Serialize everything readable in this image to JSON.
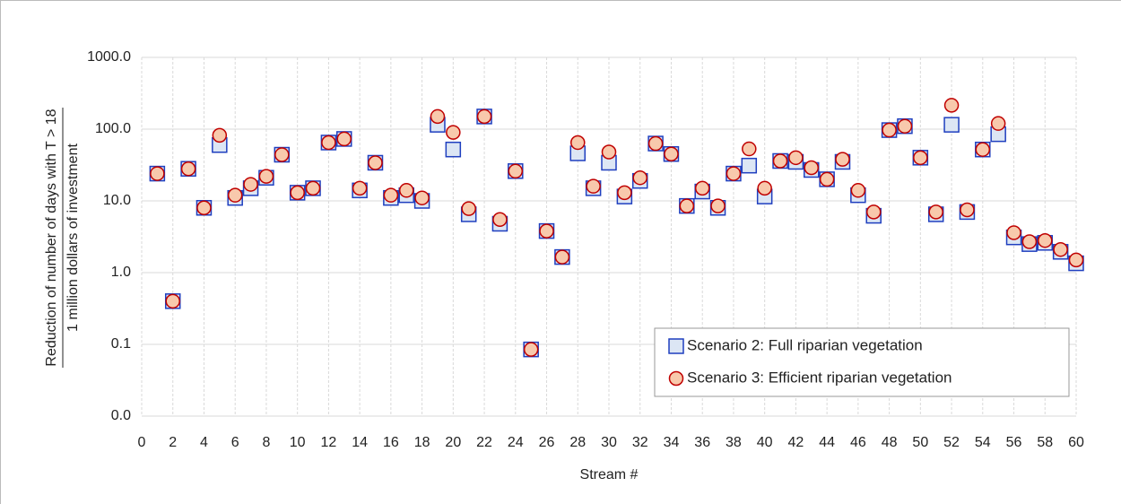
{
  "chart_data": {
    "type": "scatter",
    "xlabel": "Stream #",
    "ylabel_top": "Reduction of number of days with T > 18",
    "ylabel_bottom": "1 million dollars of investment",
    "x": [
      1,
      2,
      3,
      4,
      5,
      6,
      7,
      8,
      9,
      10,
      11,
      12,
      13,
      14,
      15,
      16,
      17,
      18,
      19,
      20,
      21,
      22,
      23,
      24,
      25,
      26,
      27,
      28,
      29,
      30,
      31,
      32,
      33,
      34,
      35,
      36,
      37,
      38,
      39,
      40,
      41,
      42,
      43,
      44,
      45,
      46,
      47,
      48,
      49,
      50,
      51,
      52,
      53,
      54,
      55,
      56,
      57,
      58,
      59,
      60
    ],
    "series": [
      {
        "name": "Scenario 2: Full riparian vegetation",
        "marker": "square",
        "color": "#dce6f4",
        "edgecolor": "#1f3fbf",
        "values": [
          24,
          0.4,
          28,
          8,
          60,
          11,
          15,
          21,
          44,
          13,
          15,
          65,
          73,
          14,
          34,
          11,
          12,
          10,
          115,
          52,
          6.5,
          150,
          4.8,
          26,
          0.085,
          3.8,
          1.65,
          46,
          15,
          34,
          11.5,
          19,
          63,
          45,
          8.5,
          13.5,
          8,
          24,
          31,
          11.5,
          36,
          35,
          27,
          20,
          35,
          12,
          6.2,
          97,
          110,
          40,
          6.5,
          115,
          7,
          52,
          85,
          3.1,
          2.5,
          2.6,
          1.95,
          1.35
        ]
      },
      {
        "name": "Scenario 3: Efficient riparian vegetation",
        "marker": "circle",
        "color": "#f8c9ac",
        "edgecolor": "#c00000",
        "values": [
          24,
          0.4,
          28,
          8,
          82,
          12,
          17,
          22,
          44,
          13,
          15,
          65,
          73,
          15,
          34,
          12,
          14,
          11,
          150,
          90,
          7.8,
          150,
          5.5,
          26,
          0.085,
          3.8,
          1.65,
          65,
          16,
          48,
          13,
          21,
          63,
          45,
          8.5,
          15,
          8.5,
          24,
          53,
          15,
          36,
          40,
          29,
          20,
          38,
          14,
          7,
          97,
          110,
          40,
          7,
          215,
          7.5,
          52,
          120,
          3.6,
          2.7,
          2.8,
          2.1,
          1.5
        ]
      }
    ],
    "xlim": [
      0,
      60
    ],
    "xticks": [
      0,
      2,
      4,
      6,
      8,
      10,
      12,
      14,
      16,
      18,
      20,
      22,
      24,
      26,
      28,
      30,
      32,
      34,
      36,
      38,
      40,
      42,
      44,
      46,
      48,
      50,
      52,
      54,
      56,
      58,
      60
    ],
    "ylim": [
      0.01,
      1000
    ],
    "yscale": "log",
    "yticks": [
      {
        "value": 0.01,
        "label": "0.0"
      },
      {
        "value": 0.1,
        "label": "0.1"
      },
      {
        "value": 1,
        "label": "1.0"
      },
      {
        "value": 10,
        "label": "10.0"
      },
      {
        "value": 100,
        "label": "100.0"
      },
      {
        "value": 1000,
        "label": "1000.0"
      }
    ],
    "grid": true,
    "legend": "lower right"
  }
}
